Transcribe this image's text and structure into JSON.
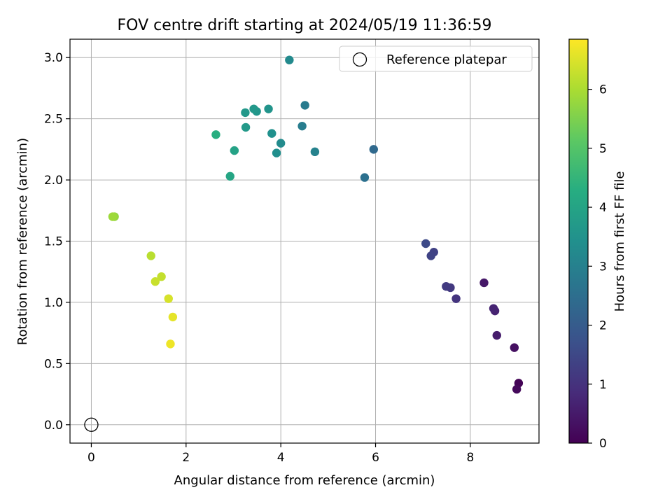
{
  "chart_data": {
    "type": "scatter",
    "title": "FOV centre drift starting at 2024/05/19 11:36:59",
    "xlabel": "Angular distance from reference (arcmin)",
    "ylabel": "Rotation from reference (arcmin)",
    "xlim": [
      -0.45,
      9.45
    ],
    "ylim": [
      -0.15,
      3.15
    ],
    "xticks": [
      0,
      2,
      4,
      6,
      8
    ],
    "yticks": [
      0.0,
      0.5,
      1.0,
      1.5,
      2.0,
      2.5,
      3.0
    ],
    "xtick_labels": [
      "0",
      "2",
      "4",
      "6",
      "8"
    ],
    "ytick_labels": [
      "0.0",
      "0.5",
      "1.0",
      "1.5",
      "2.0",
      "2.5",
      "3.0"
    ],
    "grid": true,
    "legend": {
      "position": "top-right",
      "entries": [
        "Reference platepar"
      ]
    },
    "reference_point": {
      "x": 0,
      "y": 0
    },
    "colorbar": {
      "label": "Hours from first FF file",
      "colormap": "viridis",
      "range": [
        0,
        6.85
      ],
      "ticks": [
        0,
        1,
        2,
        3,
        4,
        5,
        6
      ],
      "tick_labels": [
        "0",
        "1",
        "2",
        "3",
        "4",
        "5",
        "6"
      ]
    },
    "points": [
      {
        "x": 9.02,
        "y": 0.34,
        "c": 0.05
      },
      {
        "x": 8.98,
        "y": 0.29,
        "c": 0.15
      },
      {
        "x": 8.93,
        "y": 0.63,
        "c": 0.3
      },
      {
        "x": 8.56,
        "y": 0.73,
        "c": 0.55
      },
      {
        "x": 8.52,
        "y": 0.93,
        "c": 0.65
      },
      {
        "x": 8.49,
        "y": 0.95,
        "c": 0.7
      },
      {
        "x": 8.29,
        "y": 1.16,
        "c": 0.45
      },
      {
        "x": 7.7,
        "y": 1.03,
        "c": 1.05
      },
      {
        "x": 7.58,
        "y": 1.12,
        "c": 1.15
      },
      {
        "x": 7.49,
        "y": 1.13,
        "c": 1.2
      },
      {
        "x": 7.23,
        "y": 1.41,
        "c": 1.35
      },
      {
        "x": 7.17,
        "y": 1.38,
        "c": 1.4
      },
      {
        "x": 7.06,
        "y": 1.48,
        "c": 1.55
      },
      {
        "x": 5.96,
        "y": 2.25,
        "c": 2.35
      },
      {
        "x": 5.77,
        "y": 2.02,
        "c": 2.55
      },
      {
        "x": 4.72,
        "y": 2.23,
        "c": 3.05
      },
      {
        "x": 4.51,
        "y": 2.61,
        "c": 2.85
      },
      {
        "x": 4.45,
        "y": 2.44,
        "c": 2.9
      },
      {
        "x": 4.18,
        "y": 2.98,
        "c": 3.25
      },
      {
        "x": 4.0,
        "y": 2.3,
        "c": 3.3
      },
      {
        "x": 3.91,
        "y": 2.22,
        "c": 3.4
      },
      {
        "x": 3.81,
        "y": 2.38,
        "c": 3.45
      },
      {
        "x": 3.74,
        "y": 2.58,
        "c": 3.55
      },
      {
        "x": 3.49,
        "y": 2.56,
        "c": 3.6
      },
      {
        "x": 3.43,
        "y": 2.58,
        "c": 3.65
      },
      {
        "x": 3.26,
        "y": 2.43,
        "c": 3.7
      },
      {
        "x": 3.25,
        "y": 2.55,
        "c": 3.65
      },
      {
        "x": 3.02,
        "y": 2.24,
        "c": 3.95
      },
      {
        "x": 2.93,
        "y": 2.03,
        "c": 4.05
      },
      {
        "x": 2.63,
        "y": 2.37,
        "c": 4.3
      },
      {
        "x": 0.49,
        "y": 1.7,
        "c": 5.75
      },
      {
        "x": 0.45,
        "y": 1.7,
        "c": 5.85
      },
      {
        "x": 1.26,
        "y": 1.38,
        "c": 6.15
      },
      {
        "x": 1.48,
        "y": 1.21,
        "c": 6.25
      },
      {
        "x": 1.35,
        "y": 1.17,
        "c": 6.3
      },
      {
        "x": 1.63,
        "y": 1.03,
        "c": 6.45
      },
      {
        "x": 1.72,
        "y": 0.88,
        "c": 6.6
      },
      {
        "x": 1.67,
        "y": 0.66,
        "c": 6.7
      }
    ]
  }
}
